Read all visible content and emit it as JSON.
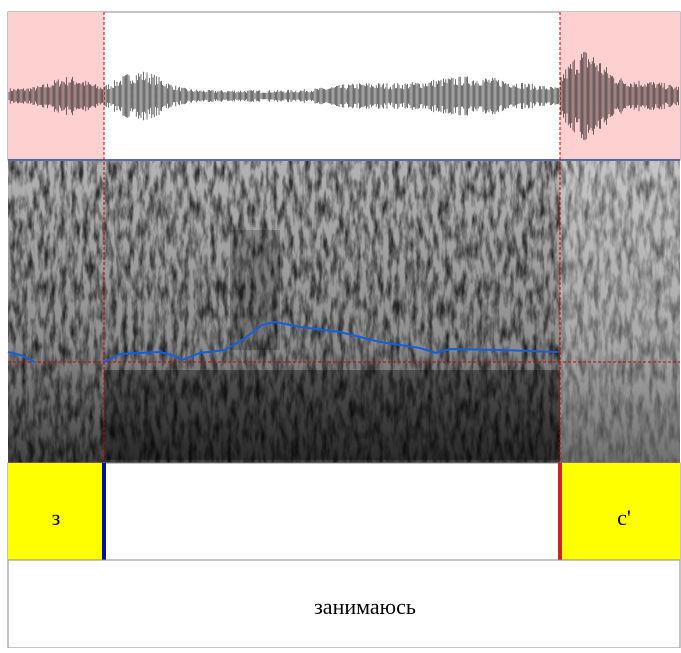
{
  "phones": [
    "з",
    "с'"
  ],
  "word": "занимаюсь"
}
